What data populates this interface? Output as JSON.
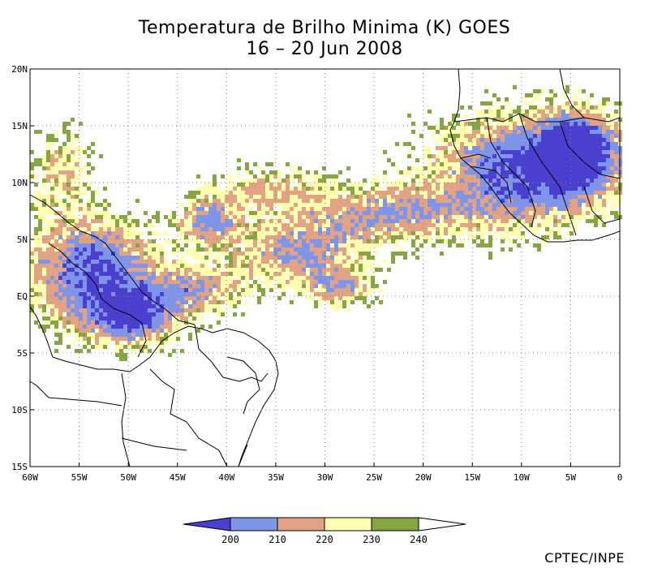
{
  "header": {
    "title_line1": "Temperatura de Brilho Minima (K) GOES",
    "title_line2": "16 – 20 Jun 2008"
  },
  "axes": {
    "lat_labels": [
      "20N",
      "15N",
      "10N",
      "5N",
      "EQ",
      "5S",
      "10S",
      "15S"
    ],
    "lat_values": [
      20,
      15,
      10,
      5,
      0,
      -5,
      -10,
      -15
    ],
    "lon_labels": [
      "60W",
      "55W",
      "50W",
      "45W",
      "40W",
      "35W",
      "30W",
      "25W",
      "20W",
      "15W",
      "10W",
      "5W",
      "0"
    ],
    "lon_values": [
      -60,
      -55,
      -50,
      -45,
      -40,
      -35,
      -30,
      -25,
      -20,
      -15,
      -10,
      -5,
      0
    ],
    "lat_range": [
      -15,
      20
    ],
    "lon_range": [
      -60,
      0
    ]
  },
  "legend": {
    "labels": [
      "200",
      "210",
      "220",
      "230",
      "240"
    ],
    "thresholds": [
      200,
      210,
      220,
      230,
      240
    ],
    "colors": [
      "#4B3FD0",
      "#7F95EA",
      "#E2A284",
      "#FFFFB0",
      "#86A644"
    ]
  },
  "credit": "CPTEC/INPE"
}
